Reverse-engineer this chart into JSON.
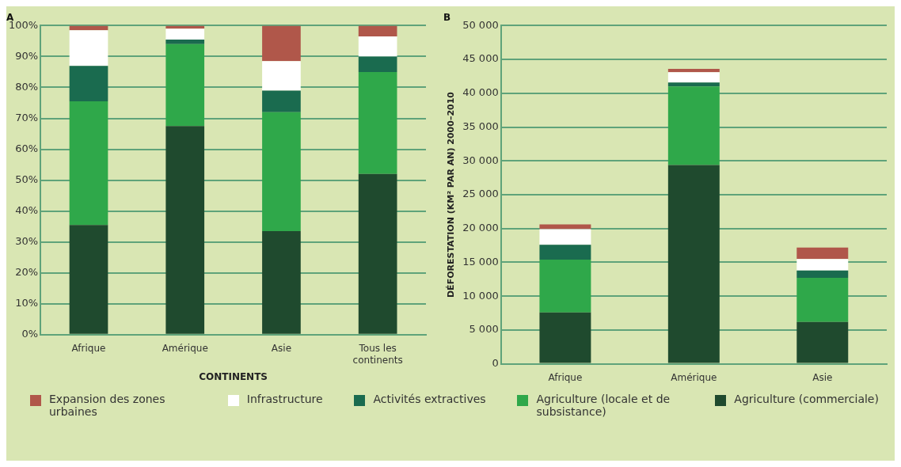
{
  "chart_data": [
    {
      "type": "bar",
      "title": "A",
      "xlabel": "CONTINENTS",
      "categories": [
        "Afrique",
        "Amérique",
        "Asie",
        "Tous les continents"
      ],
      "stacked": true,
      "grid": "y",
      "legend": "bottom",
      "ylim": [
        0,
        100
      ],
      "yticks": [
        {
          "value": 0,
          "label": "0%"
        },
        {
          "value": 10,
          "label": "10%"
        },
        {
          "value": 20,
          "label": "20%"
        },
        {
          "value": 30,
          "label": "30%"
        },
        {
          "value": 40,
          "label": "40%"
        },
        {
          "value": 50,
          "label": "50%"
        },
        {
          "value": 60,
          "label": "60%"
        },
        {
          "value": 70,
          "label": "70%"
        },
        {
          "value": 80,
          "label": "80%"
        },
        {
          "value": 90,
          "label": "90%"
        },
        {
          "value": 100,
          "label": "100%"
        }
      ],
      "series": [
        {
          "name": "Agriculture (commerciale)",
          "color": "#1f4a2e",
          "values": [
            35.5,
            67.5,
            33.5,
            52
          ]
        },
        {
          "name": "Agriculture (locale et de subsistance)",
          "color": "#2fa84a",
          "values": [
            40,
            26.5,
            38.5,
            33
          ]
        },
        {
          "name": "Activités extractives",
          "color": "#1a6b4f",
          "values": [
            11.5,
            1.5,
            7,
            5
          ]
        },
        {
          "name": "Infrastructure",
          "color": "#ffffff",
          "values": [
            11.5,
            3.5,
            9.5,
            6.5
          ]
        },
        {
          "name": "Expansion des zones urbaines",
          "color": "#b0574a",
          "values": [
            1.5,
            1,
            11.5,
            3.5
          ]
        }
      ]
    },
    {
      "type": "bar",
      "title": "B",
      "ylabel": "DÉFORESTATION (KM² PAR AN) 2000–2010",
      "categories": [
        "Afrique",
        "Amérique",
        "Asie"
      ],
      "stacked": true,
      "grid": "y",
      "ylim": [
        0,
        50000
      ],
      "yticks": [
        {
          "value": 0,
          "label": "0"
        },
        {
          "value": 5000,
          "label": "5 000"
        },
        {
          "value": 10000,
          "label": "10 000"
        },
        {
          "value": 15000,
          "label": "15 000"
        },
        {
          "value": 20000,
          "label": "20 000"
        },
        {
          "value": 25000,
          "label": "25 000"
        },
        {
          "value": 30000,
          "label": "30 000"
        },
        {
          "value": 35000,
          "label": "35 000"
        },
        {
          "value": 40000,
          "label": "40 000"
        },
        {
          "value": 45000,
          "label": "45 000"
        },
        {
          "value": 50000,
          "label": "50 000"
        }
      ],
      "series": [
        {
          "color": "#1f4a2e",
          "values": [
            7600,
            29400,
            6200
          ]
        },
        {
          "color": "#2fa84a",
          "values": [
            7800,
            11600,
            6500
          ]
        },
        {
          "color": "#1a6b4f",
          "values": [
            2200,
            600,
            1100
          ]
        },
        {
          "color": "#ffffff",
          "values": [
            2300,
            1500,
            1700
          ]
        },
        {
          "color": "#b0574a",
          "values": [
            700,
            500,
            1700
          ]
        }
      ]
    }
  ]
}
